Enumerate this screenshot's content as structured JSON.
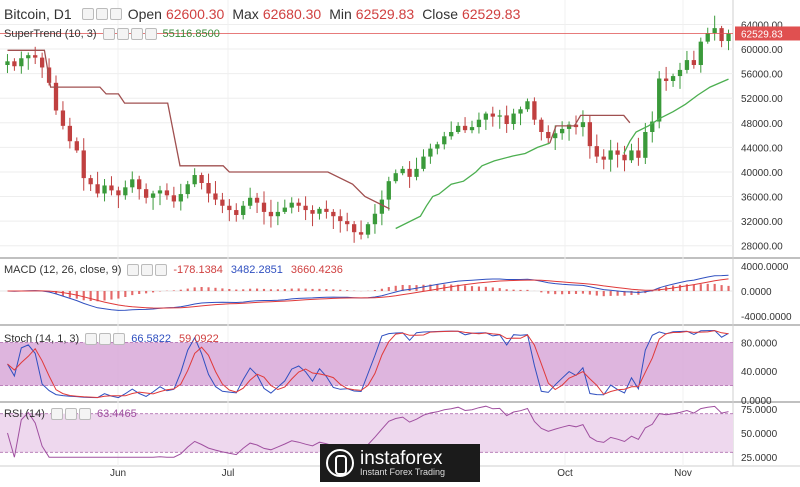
{
  "chart_data": {
    "type": "candlestick",
    "symbol": "Bitcoin, D1",
    "ohlc": {
      "open_label": "Open",
      "open": "62600.30",
      "max_label": "Max",
      "max": "62680.30",
      "min_label": "Min",
      "min": "62529.83",
      "close_label": "Close",
      "close": "62529.83"
    },
    "last_price_label": "62529.83",
    "x_tick_labels": [
      "Jun",
      "Jul",
      "Oct",
      "Nov"
    ],
    "price_axis": {
      "ylim": [
        26000,
        67000
      ],
      "ticks": [
        28000,
        32000,
        36000,
        40000,
        44000,
        48000,
        52000,
        56000,
        60000,
        64000
      ],
      "tick_labels": [
        "28000.00",
        "32000.00",
        "36000.00",
        "40000.00",
        "44000.00",
        "48000.00",
        "52000.00",
        "56000.00",
        "60000.00",
        "64000.00"
      ]
    },
    "close_series": [
      58000,
      57200,
      58500,
      59000,
      58600,
      57000,
      54500,
      50000,
      47500,
      45000,
      43500,
      39000,
      38000,
      36500,
      37800,
      37000,
      36200,
      37500,
      38800,
      37200,
      35800,
      36500,
      37000,
      36200,
      35200,
      36400,
      38000,
      39500,
      38200,
      36500,
      35500,
      34500,
      33800,
      33000,
      34500,
      35800,
      35000,
      33500,
      32800,
      33500,
      34200,
      35000,
      34500,
      33800,
      33200,
      34000,
      33500,
      32800,
      32000,
      31500,
      30200,
      29800,
      31500,
      33200,
      35500,
      38500,
      39800,
      40500,
      39200,
      40500,
      42500,
      43800,
      44500,
      45800,
      46500,
      47500,
      46800,
      47300,
      48500,
      49500,
      49000,
      49200,
      47800,
      49500,
      50200,
      51500,
      48500,
      46500,
      45500,
      46300,
      47000,
      47700,
      47300,
      48100,
      44200,
      42500,
      42000,
      43500,
      42800,
      41900,
      43500,
      42300,
      46500,
      48200,
      55200,
      54800,
      55600,
      56600,
      58200,
      57400,
      61200,
      62600,
      63400,
      61300,
      62529
    ],
    "supertrend": {
      "name": "SuperTrend (10, 3)",
      "value": "55116.8500",
      "color_up": "#4caf50",
      "color_down": "#a05050",
      "down_segment": [
        [
          0,
          59800
        ],
        [
          6,
          59800
        ],
        [
          7,
          53800
        ],
        [
          15,
          53800
        ],
        [
          16,
          52700
        ],
        [
          18,
          52700
        ],
        [
          19,
          51200
        ],
        [
          26,
          51200
        ],
        [
          28,
          41000
        ],
        [
          35,
          41000
        ],
        [
          36,
          40000
        ],
        [
          52,
          40000
        ],
        [
          56,
          38000
        ],
        [
          58,
          36000
        ],
        [
          62,
          34000
        ]
      ],
      "up_segment": [
        [
          63,
          30800
        ],
        [
          67,
          32800
        ],
        [
          68,
          34500
        ],
        [
          69,
          36000
        ],
        [
          70,
          36400
        ],
        [
          72,
          38000
        ],
        [
          74,
          38500
        ],
        [
          76,
          40000
        ],
        [
          77,
          41000
        ],
        [
          79,
          41800
        ],
        [
          82,
          42600
        ],
        [
          84,
          43000
        ],
        [
          86,
          44000
        ],
        [
          88,
          44700
        ]
      ],
      "down_segment2": [
        [
          88,
          44700
        ],
        [
          89,
          47500
        ],
        [
          92,
          47500
        ],
        [
          93,
          49200
        ],
        [
          100,
          49200
        ],
        [
          101,
          48000
        ]
      ],
      "up_segment2": [
        [
          100,
          43000
        ],
        [
          101,
          45000
        ],
        [
          102,
          46500
        ],
        [
          104,
          47500
        ],
        [
          106,
          48800
        ],
        [
          108,
          49800
        ],
        [
          110,
          51000
        ],
        [
          112,
          52500
        ],
        [
          114,
          53800
        ],
        [
          117,
          55100
        ]
      ]
    },
    "macd": {
      "label": "MACD (12, 26, close, 9)",
      "values": [
        "-178.1384",
        "3482.2851",
        "3660.4236"
      ],
      "colors": [
        "#e03a3a",
        "#3050c0",
        "#e03a3a"
      ],
      "ylim": [
        -5000,
        5000
      ],
      "ticks": [
        4000,
        0,
        -4000
      ],
      "tick_labels": [
        "4000.0000",
        "0.0000",
        "-4000.0000"
      ]
    },
    "stochastic": {
      "label": "Stoch (14, 1, 3)",
      "values": [
        "66.5822",
        "59.0922"
      ],
      "colors": [
        "#3050c0",
        "#e03a3a"
      ],
      "band": [
        20,
        80
      ],
      "ylim": [
        0,
        100
      ],
      "ticks": [
        80,
        40,
        0
      ],
      "tick_labels": [
        "80.0000",
        "40.0000",
        "0.0000"
      ]
    },
    "rsi": {
      "label": "RSI (14)",
      "value": "63.4465",
      "color": "#a050a0",
      "band": [
        30,
        70
      ],
      "ylim": [
        20,
        80
      ],
      "ticks": [
        75,
        50,
        25
      ],
      "tick_labels": [
        "75.0000",
        "50.0000",
        "25.0000"
      ]
    },
    "colors": {
      "bull": "#26a69a",
      "bear": "#ef5350",
      "up_candle": "#3a9a3a",
      "down_candle": "#c04040",
      "price_line": "#e05050",
      "stoch_band": "#d8a8d8",
      "rsi_band": "#eed8ee"
    }
  },
  "watermark": {
    "brand": "instaforex",
    "tagline": "Instant Forex Trading"
  }
}
